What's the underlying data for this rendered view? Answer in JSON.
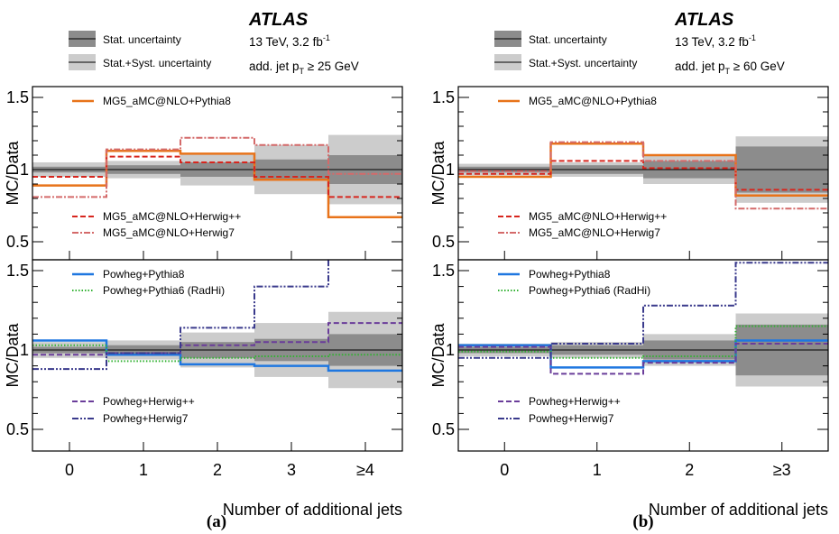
{
  "colors": {
    "stat_band": "#8c8c8c",
    "syst_band": "#cccccc",
    "MG5_aMC@NLO+Pythia8": "#e8731a",
    "MG5_aMC@NLO+Herwig++": "#d7261e",
    "MG5_aMC@NLO+Herwig7": "#d46a6a",
    "Powheg+Pythia8": "#1f77e0",
    "Powheg+Pythia6 (RadHi)": "#33b233",
    "Powheg+Herwig++": "#6a3d9a",
    "Powheg+Herwig7": "#3a3a8c"
  },
  "chart_data": [
    {
      "type": "step",
      "panel_label": "(a)",
      "atlas_label": "ATLAS",
      "energy_label": "13 TeV, 3.2 fb",
      "lumi_superscript": "-1",
      "cut_prefix": "add. jet p",
      "cut_subscript": "T",
      "cut_suffix": " ≥ 25 GeV",
      "band_legend": [
        "Stat. uncertainty",
        "Stat.+Syst. uncertainty"
      ],
      "xlabel": "Number of additional jets",
      "ylabel": "MC/Data",
      "categories": [
        "0",
        "1",
        "2",
        "3",
        "≥4"
      ],
      "ylim_top": [
        0.4,
        1.62
      ],
      "ylim_bottom": [
        0.4,
        1.62
      ],
      "yticks": [
        "0.5",
        "1",
        "1.5"
      ],
      "stat_unc": [
        0.02,
        0.03,
        0.05,
        0.07,
        0.1
      ],
      "syst_unc": [
        0.05,
        0.06,
        0.11,
        0.17,
        0.24
      ],
      "top_series": [
        {
          "name": "MG5_aMC@NLO+Pythia8",
          "style": "solid",
          "values": [
            0.89,
            1.13,
            1.11,
            0.93,
            0.67
          ]
        },
        {
          "name": "MG5_aMC@NLO+Herwig++",
          "style": "dashed",
          "values": [
            0.95,
            1.09,
            1.05,
            0.95,
            0.81
          ]
        },
        {
          "name": "MG5_aMC@NLO+Herwig7",
          "style": "dashdot",
          "values": [
            0.81,
            1.14,
            1.22,
            1.17,
            0.97
          ]
        }
      ],
      "bottom_series": [
        {
          "name": "Powheg+Pythia8",
          "style": "solid",
          "values": [
            1.06,
            0.97,
            0.91,
            0.9,
            0.87
          ]
        },
        {
          "name": "Powheg+Pythia6 (RadHi)",
          "style": "dotted",
          "values": [
            1.03,
            0.93,
            0.95,
            0.96,
            0.97
          ]
        },
        {
          "name": "Powheg+Herwig++",
          "style": "dashed",
          "values": [
            0.97,
            0.98,
            1.03,
            1.05,
            1.17
          ]
        },
        {
          "name": "Powheg+Herwig7",
          "style": "dashdotdot",
          "values": [
            0.88,
            0.98,
            1.14,
            1.4,
            1.62
          ]
        }
      ]
    },
    {
      "type": "step",
      "panel_label": "(b)",
      "atlas_label": "ATLAS",
      "energy_label": "13 TeV, 3.2 fb",
      "lumi_superscript": "-1",
      "cut_prefix": "add. jet p",
      "cut_subscript": "T",
      "cut_suffix": " ≥ 60 GeV",
      "band_legend": [
        "Stat. uncertainty",
        "Stat.+Syst. uncertainty"
      ],
      "xlabel": "Number of additional jets",
      "ylabel": "MC/Data",
      "categories": [
        "0",
        "1",
        "2",
        "≥3"
      ],
      "ylim_top": [
        0.4,
        1.62
      ],
      "ylim_bottom": [
        0.4,
        1.62
      ],
      "yticks": [
        "0.5",
        "1",
        "1.5"
      ],
      "stat_unc": [
        0.02,
        0.03,
        0.06,
        0.16
      ],
      "syst_unc": [
        0.04,
        0.05,
        0.1,
        0.23
      ],
      "top_series": [
        {
          "name": "MG5_aMC@NLO+Pythia8",
          "style": "solid",
          "values": [
            0.95,
            1.18,
            1.1,
            0.82
          ]
        },
        {
          "name": "MG5_aMC@NLO+Herwig++",
          "style": "dashed",
          "values": [
            0.97,
            1.06,
            1.01,
            0.86
          ]
        },
        {
          "name": "MG5_aMC@NLO+Herwig7",
          "style": "dashdot",
          "values": [
            0.99,
            1.19,
            1.06,
            0.73
          ]
        }
      ],
      "bottom_series": [
        {
          "name": "Powheg+Pythia8",
          "style": "solid",
          "values": [
            1.03,
            0.89,
            0.93,
            1.06
          ]
        },
        {
          "name": "Powheg+Pythia6 (RadHi)",
          "style": "dotted",
          "values": [
            0.99,
            0.95,
            0.96,
            1.15
          ]
        },
        {
          "name": "Powheg+Herwig++",
          "style": "dashed",
          "values": [
            1.02,
            0.85,
            0.92,
            1.04
          ]
        },
        {
          "name": "Powheg+Herwig7",
          "style": "dashdotdot",
          "values": [
            0.95,
            1.04,
            1.28,
            1.55
          ]
        }
      ]
    }
  ]
}
